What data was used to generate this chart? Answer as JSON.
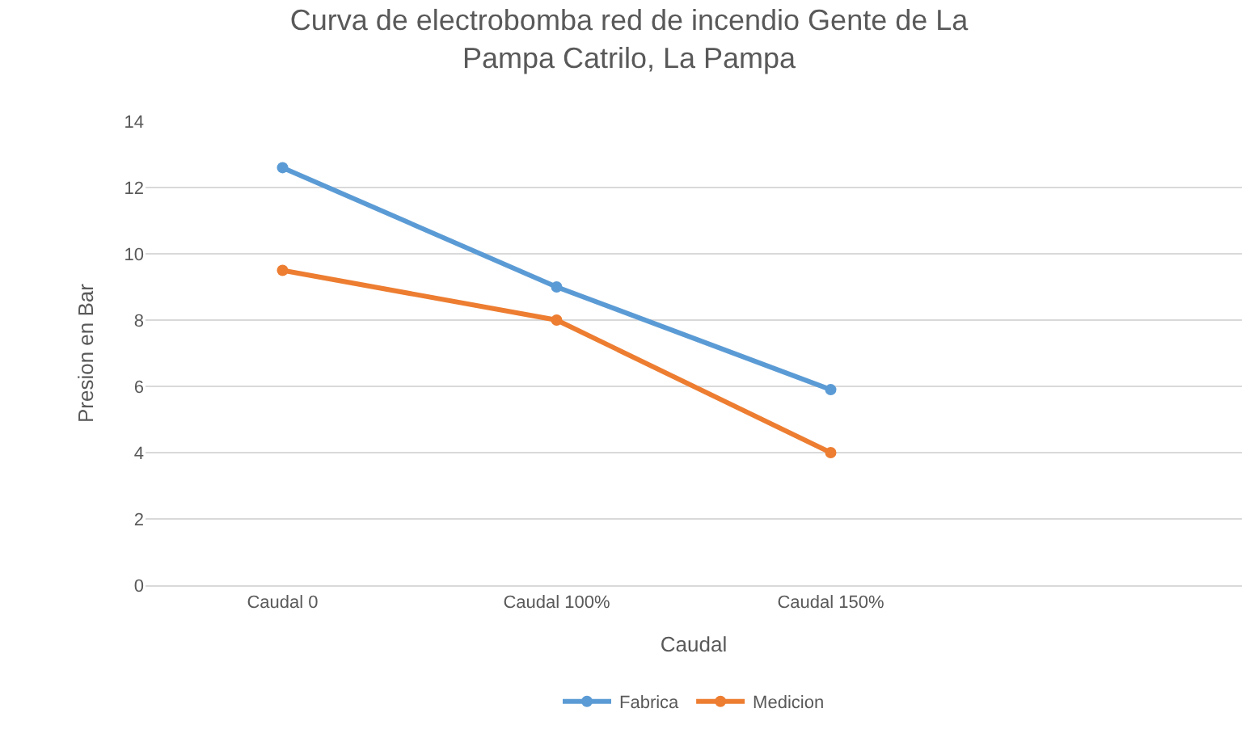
{
  "chart_data": {
    "type": "line",
    "title": "Curva de electrobomba red de incendio Gente de La\nPampa Catrilo, La Pampa",
    "xlabel": "Caudal",
    "ylabel": "Presion en Bar",
    "categories": [
      "Caudal 0",
      "Caudal 100%",
      "Caudal 150%",
      null
    ],
    "series": [
      {
        "name": "Fabrica",
        "color": "#5b9bd5",
        "values": [
          12.6,
          9.0,
          5.9,
          null
        ]
      },
      {
        "name": "Medicion",
        "color": "#ed7d31",
        "values": [
          9.5,
          8.0,
          4.0,
          null
        ]
      }
    ],
    "ylim": [
      0,
      14
    ],
    "yticks": [
      0,
      2,
      4,
      6,
      8,
      10,
      12,
      14
    ],
    "grid": "y",
    "legend": "bottom",
    "marker": "circle",
    "line_style": "solid"
  }
}
